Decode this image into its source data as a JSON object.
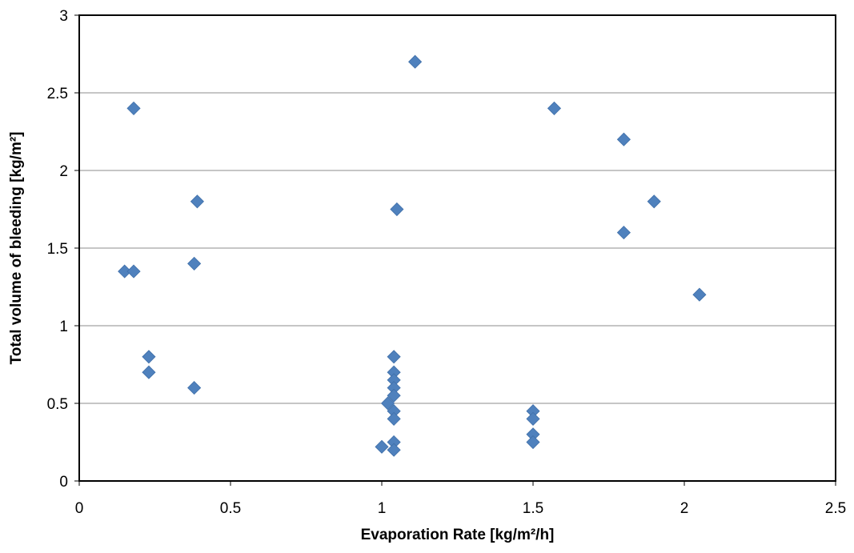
{
  "chart_data": {
    "type": "scatter",
    "title": "",
    "xlabel": "Evaporation Rate [kg/m²/h]",
    "ylabel": "Total volume of bleeding [kg/m²]",
    "xlim": [
      0,
      2.5
    ],
    "ylim": [
      0,
      3
    ],
    "x_ticks": [
      0,
      0.5,
      1,
      1.5,
      2,
      2.5
    ],
    "y_ticks": [
      0,
      0.5,
      1,
      1.5,
      2,
      2.5,
      3
    ],
    "x_tick_labels": [
      "0",
      "0.5",
      "1",
      "1.5",
      "2",
      "2.5"
    ],
    "y_tick_labels": [
      "0",
      "0.5",
      "1",
      "1.5",
      "2",
      "2.5",
      "3"
    ],
    "grid": "horizontal",
    "legend": "none",
    "marker": "diamond",
    "marker_color": "#4f81bd",
    "series": [
      {
        "points": [
          [
            0.15,
            1.35
          ],
          [
            0.18,
            1.35
          ],
          [
            0.18,
            2.4
          ],
          [
            0.23,
            0.8
          ],
          [
            0.23,
            0.7
          ],
          [
            0.38,
            0.6
          ],
          [
            0.38,
            1.4
          ],
          [
            0.39,
            1.8
          ],
          [
            1.0,
            0.22
          ],
          [
            1.02,
            0.5
          ],
          [
            1.04,
            0.8
          ],
          [
            1.04,
            0.7
          ],
          [
            1.04,
            0.65
          ],
          [
            1.04,
            0.6
          ],
          [
            1.04,
            0.55
          ],
          [
            1.04,
            0.45
          ],
          [
            1.04,
            0.4
          ],
          [
            1.04,
            0.25
          ],
          [
            1.04,
            0.2
          ],
          [
            1.05,
            1.75
          ],
          [
            1.11,
            2.7
          ],
          [
            1.5,
            0.45
          ],
          [
            1.5,
            0.4
          ],
          [
            1.5,
            0.3
          ],
          [
            1.5,
            0.25
          ],
          [
            1.57,
            2.4
          ],
          [
            1.8,
            2.2
          ],
          [
            1.8,
            1.6
          ],
          [
            1.9,
            1.8
          ],
          [
            2.05,
            1.2
          ]
        ]
      }
    ]
  }
}
